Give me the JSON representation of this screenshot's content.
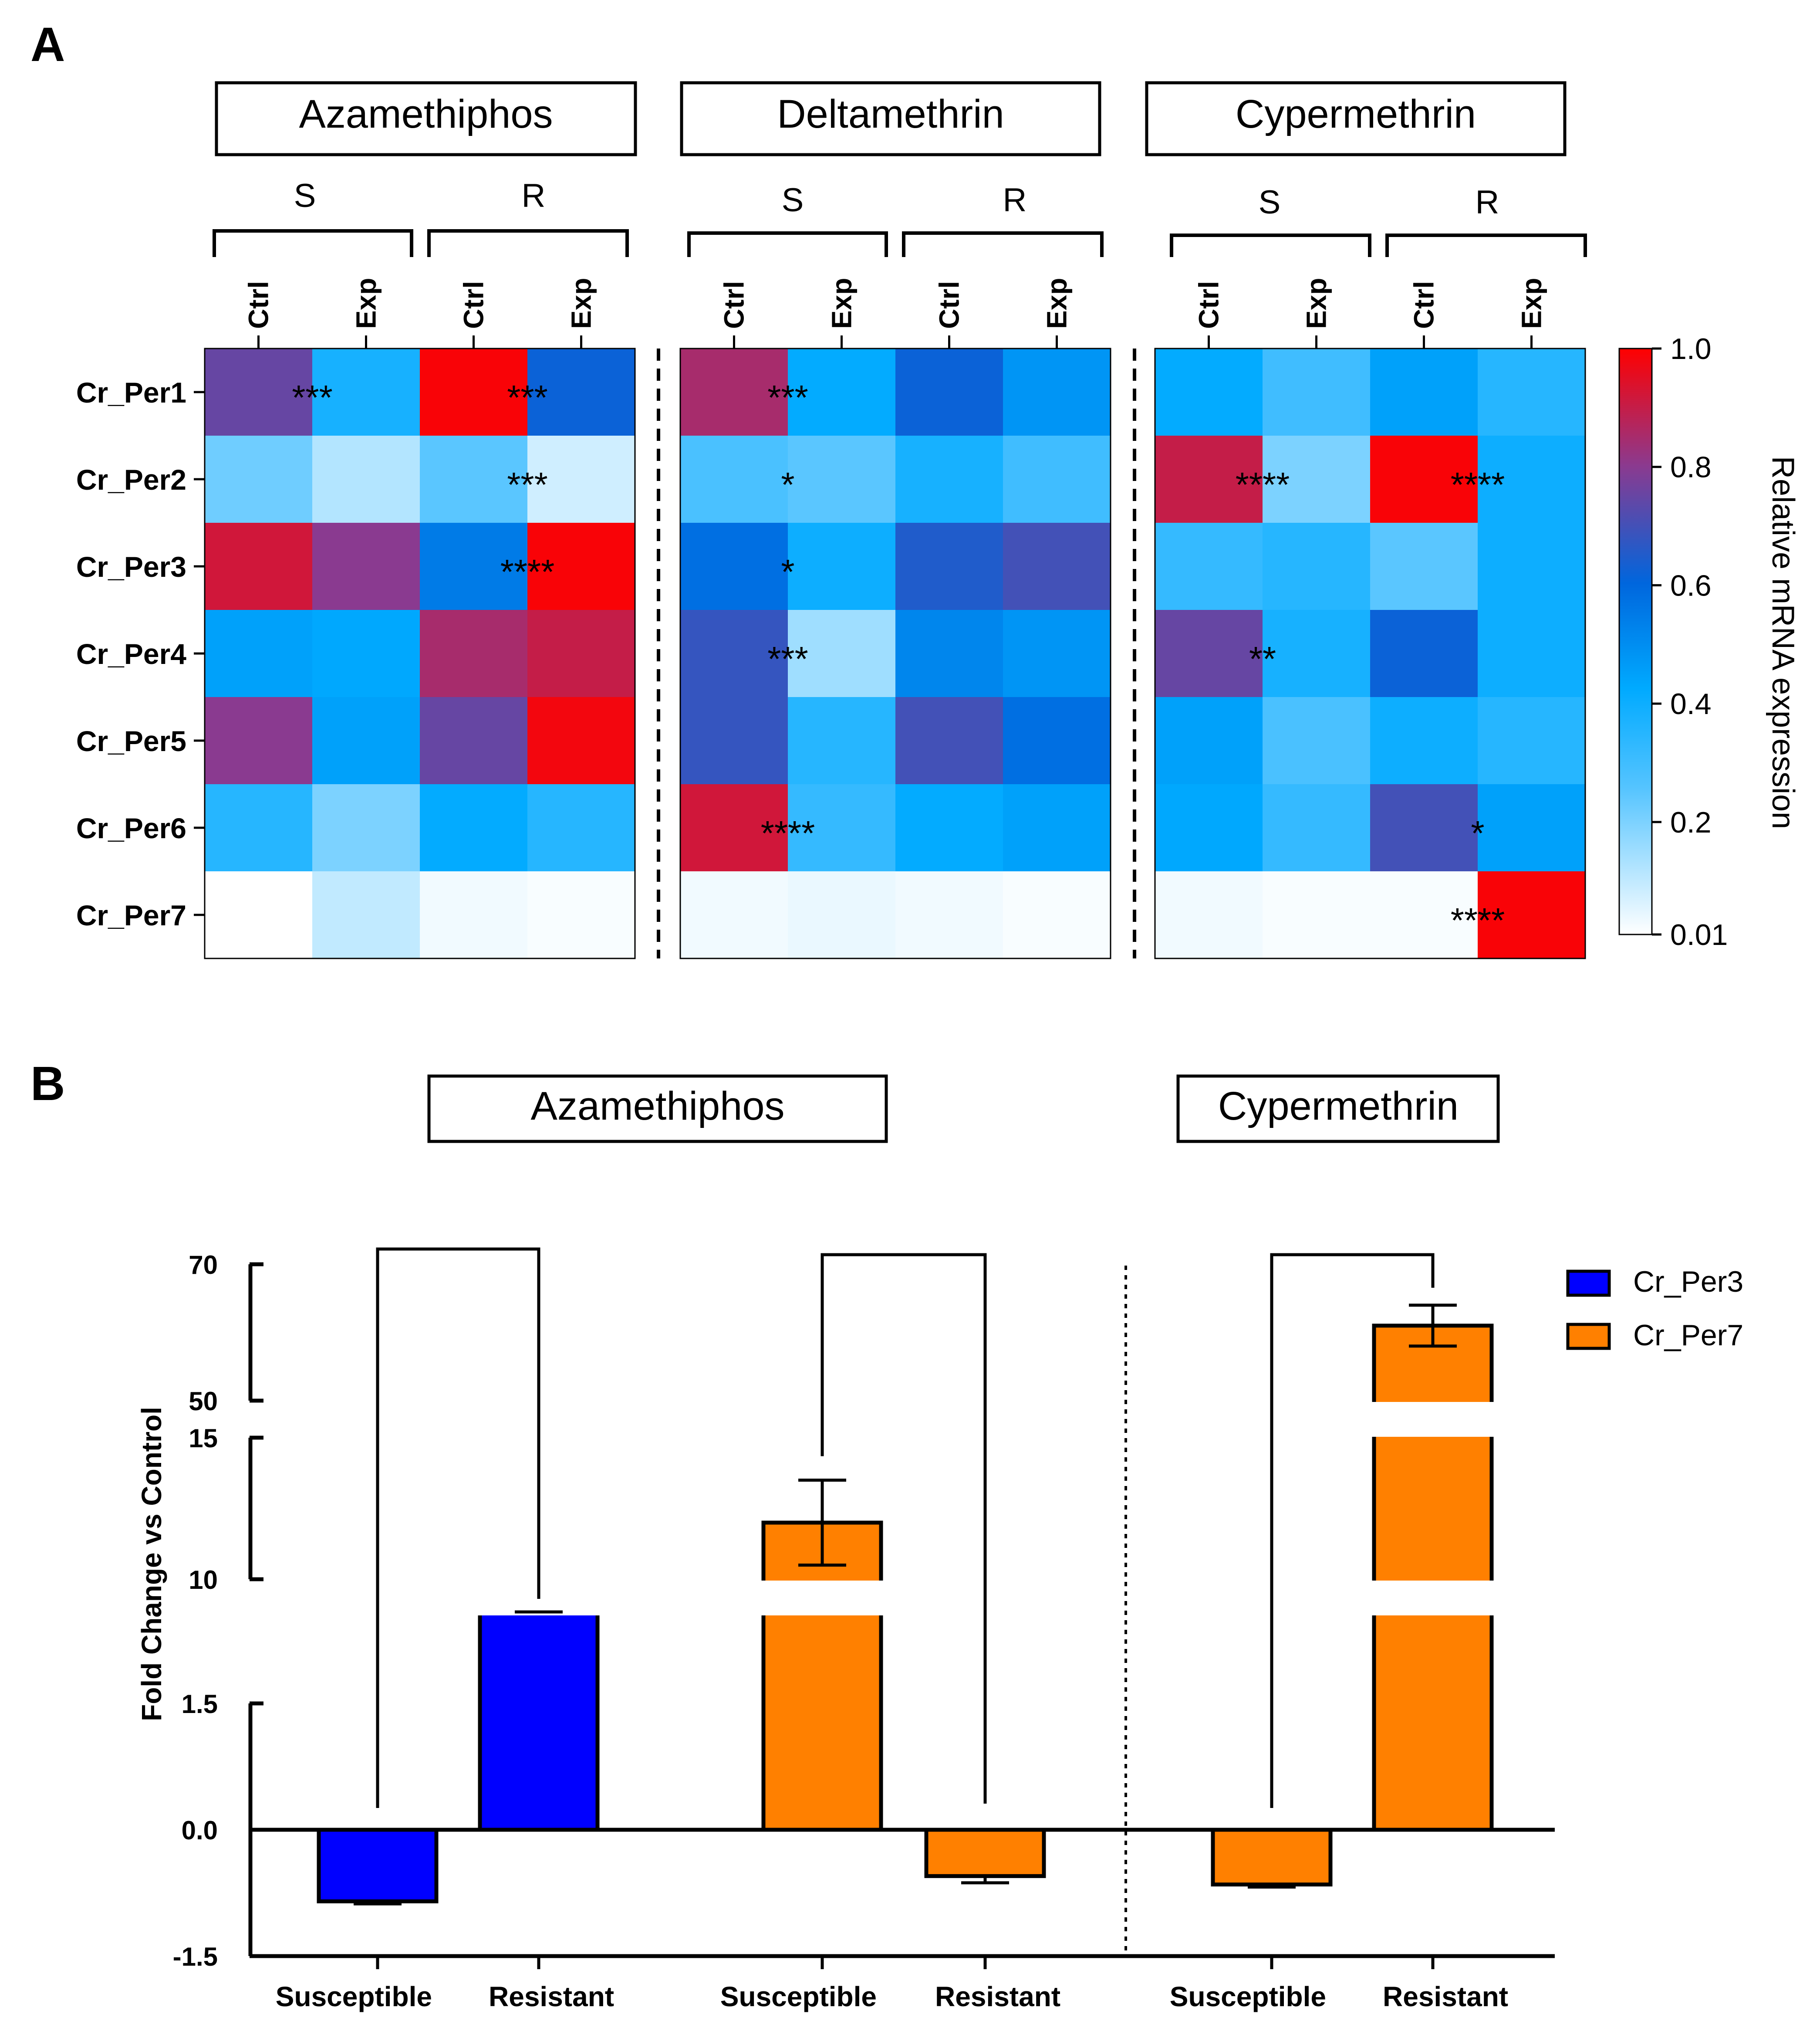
{
  "panels": [
    {
      "label": "A"
    },
    {
      "label": "B"
    }
  ],
  "chart_data": [
    {
      "type": "heatmap",
      "panel": "A",
      "groups": [
        {
          "name": "Azamethiphos",
          "subgroups": [
            "S",
            "R"
          ]
        },
        {
          "name": "Deltamethrin",
          "subgroups": [
            "S",
            "R"
          ]
        },
        {
          "name": "Cypermethrin",
          "subgroups": [
            "S",
            "R"
          ]
        }
      ],
      "columns": [
        "Ctrl",
        "Exp",
        "Ctrl",
        "Exp",
        "Ctrl",
        "Exp",
        "Ctrl",
        "Exp",
        "Ctrl",
        "Exp",
        "Ctrl",
        "Exp"
      ],
      "rows": [
        "Cr_Per1",
        "Cr_Per2",
        "Cr_Per3",
        "Cr_Per4",
        "Cr_Per5",
        "Cr_Per6",
        "Cr_Per7"
      ],
      "values": [
        [
          0.75,
          0.38,
          0.99,
          0.62,
          0.85,
          0.42,
          0.62,
          0.48,
          0.42,
          0.3,
          0.45,
          0.35
        ],
        [
          0.22,
          0.12,
          0.25,
          0.08,
          0.28,
          0.25,
          0.38,
          0.3,
          0.9,
          0.2,
          0.99,
          0.4
        ],
        [
          0.92,
          0.8,
          0.55,
          0.99,
          0.58,
          0.4,
          0.65,
          0.7,
          0.32,
          0.35,
          0.25,
          0.4
        ],
        [
          0.45,
          0.43,
          0.85,
          0.9,
          0.68,
          0.15,
          0.52,
          0.48,
          0.75,
          0.38,
          0.62,
          0.4
        ],
        [
          0.8,
          0.45,
          0.75,
          0.98,
          0.68,
          0.35,
          0.7,
          0.58,
          0.45,
          0.28,
          0.4,
          0.35
        ],
        [
          0.35,
          0.2,
          0.42,
          0.35,
          0.92,
          0.32,
          0.42,
          0.45,
          0.43,
          0.32,
          0.7,
          0.45
        ],
        [
          0.01,
          0.1,
          0.03,
          0.02,
          0.03,
          0.04,
          0.03,
          0.02,
          0.03,
          0.02,
          0.02,
          0.99
        ]
      ],
      "annotations": [
        {
          "row": 0,
          "col_boundary": 1,
          "text": "***"
        },
        {
          "row": 0,
          "col_boundary": 3,
          "text": "***"
        },
        {
          "row": 0,
          "col_boundary": 5,
          "text": "***"
        },
        {
          "row": 1,
          "col_boundary": 3,
          "text": "***"
        },
        {
          "row": 1,
          "col_boundary": 5,
          "text": "*"
        },
        {
          "row": 1,
          "col_boundary": 9,
          "text": "****"
        },
        {
          "row": 1,
          "col_boundary": 11,
          "text": "****"
        },
        {
          "row": 2,
          "col_boundary": 3,
          "text": "****"
        },
        {
          "row": 2,
          "col_boundary": 5,
          "text": "*"
        },
        {
          "row": 3,
          "col_boundary": 5,
          "text": "***"
        },
        {
          "row": 3,
          "col_boundary": 9,
          "text": "**"
        },
        {
          "row": 5,
          "col_boundary": 5,
          "text": "****"
        },
        {
          "row": 5,
          "col_boundary": 11,
          "text": "*"
        },
        {
          "row": 6,
          "col_boundary": 11,
          "text": "****"
        }
      ],
      "colorbar": {
        "label": "Relative mRNA expression",
        "range": [
          0.01,
          1.0
        ],
        "ticks": [
          "1.0",
          "0.8",
          "0.6",
          "0.4",
          "0.2",
          "0.01"
        ],
        "colors": {
          "low": "#ffffff",
          "mid": "#00aaff",
          "midhigh": "#0066dd",
          "high2": "#8b3a8f",
          "high": "#ff0000"
        }
      }
    },
    {
      "type": "bar",
      "panel": "B",
      "groups": [
        {
          "name": "Azamethiphos",
          "categories": [
            "Susceptible",
            "Resistant"
          ]
        },
        {
          "name": "",
          "categories": [
            "Susceptible",
            "Resistant"
          ]
        },
        {
          "name": "Cypermethrin",
          "categories": [
            "Susceptible",
            "Resistant"
          ]
        }
      ],
      "series": [
        {
          "name": "Cr_Per3",
          "color": "#0000ff"
        },
        {
          "name": "Cr_Per7",
          "color": "#ff8000"
        }
      ],
      "bars": [
        {
          "group": 0,
          "category": "Susceptible",
          "series": "Cr_Per3",
          "value": -0.85,
          "error": 0.03
        },
        {
          "group": 0,
          "category": "Resistant",
          "series": "Cr_Per3",
          "value": 1.65,
          "error": 0.1
        },
        {
          "group": 1,
          "category": "Susceptible",
          "series": "Cr_Per7",
          "value": 12.0,
          "error": 1.5
        },
        {
          "group": 1,
          "category": "Resistant",
          "series": "Cr_Per7",
          "value": -0.55,
          "error": 0.08
        },
        {
          "group": 2,
          "category": "Susceptible",
          "series": "Cr_Per7",
          "value": -0.65,
          "error": 0.03
        },
        {
          "group": 2,
          "category": "Resistant",
          "series": "Cr_Per7",
          "value": 61.0,
          "error": 3.0
        }
      ],
      "ylabel": "Fold Change vs Control",
      "ytick_labels": [
        "-1.5",
        "0.0",
        "1.5",
        "10",
        "15",
        "50",
        "70"
      ],
      "axis_segments": [
        [
          -1.5,
          1.5
        ],
        [
          10,
          15
        ],
        [
          50,
          70
        ]
      ]
    }
  ]
}
